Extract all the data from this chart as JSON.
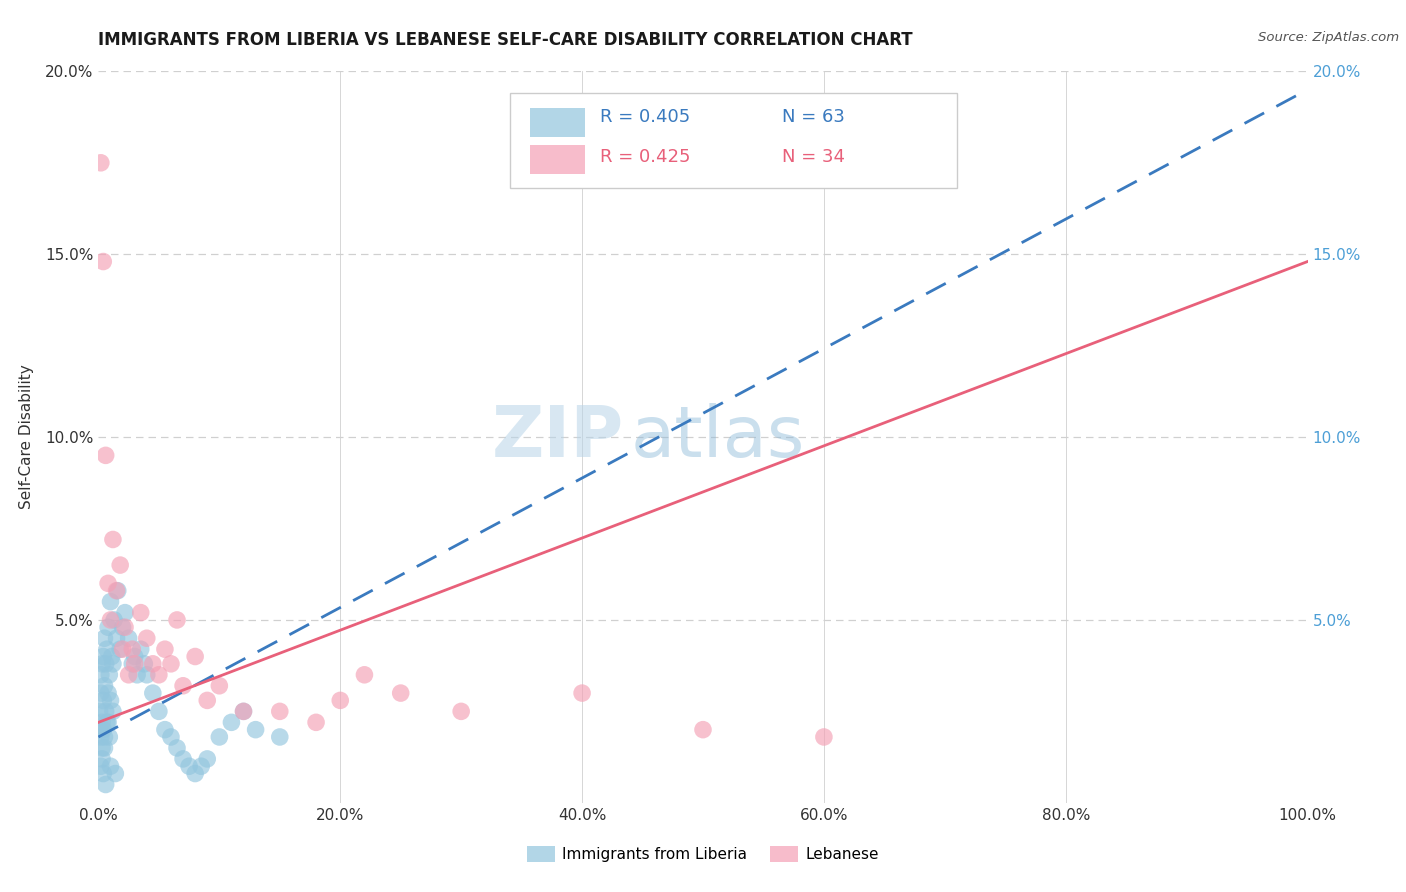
{
  "title": "IMMIGRANTS FROM LIBERIA VS LEBANESE SELF-CARE DISABILITY CORRELATION CHART",
  "source": "Source: ZipAtlas.com",
  "ylabel": "Self-Care Disability",
  "xlim": [
    0,
    1.0
  ],
  "ylim": [
    0,
    0.2
  ],
  "legend_r1": "R = 0.405",
  "legend_n1": "N = 63",
  "legend_r2": "R = 0.425",
  "legend_n2": "N = 34",
  "color_blue": "#92c5de",
  "color_pink": "#f4a0b5",
  "color_blue_line": "#3a7abf",
  "color_pink_line": "#e8607a",
  "watermark_zip": "ZIP",
  "watermark_atlas": "atlas",
  "background_color": "#ffffff",
  "grid_color": "#d0d0d0",
  "title_color": "#1a1a1a",
  "source_color": "#555555",
  "right_axis_color": "#4d9fd6",
  "left_axis_label_color": "#333333",
  "legend_box_color": "#e8e8e8",
  "blue_scatter_x": [
    0.001,
    0.001,
    0.002,
    0.002,
    0.002,
    0.003,
    0.003,
    0.003,
    0.004,
    0.004,
    0.004,
    0.005,
    0.005,
    0.005,
    0.006,
    0.006,
    0.007,
    0.007,
    0.008,
    0.008,
    0.009,
    0.01,
    0.01,
    0.011,
    0.012,
    0.013,
    0.015,
    0.016,
    0.018,
    0.02,
    0.022,
    0.025,
    0.028,
    0.03,
    0.032,
    0.035,
    0.038,
    0.04,
    0.045,
    0.05,
    0.055,
    0.06,
    0.065,
    0.07,
    0.075,
    0.08,
    0.085,
    0.09,
    0.1,
    0.11,
    0.12,
    0.13,
    0.15,
    0.002,
    0.003,
    0.004,
    0.005,
    0.006,
    0.008,
    0.009,
    0.01,
    0.012,
    0.014
  ],
  "blue_scatter_y": [
    0.02,
    0.025,
    0.018,
    0.03,
    0.035,
    0.015,
    0.022,
    0.038,
    0.02,
    0.028,
    0.04,
    0.018,
    0.032,
    0.045,
    0.025,
    0.038,
    0.022,
    0.042,
    0.03,
    0.048,
    0.035,
    0.028,
    0.055,
    0.04,
    0.038,
    0.05,
    0.045,
    0.058,
    0.042,
    0.048,
    0.052,
    0.045,
    0.038,
    0.04,
    0.035,
    0.042,
    0.038,
    0.035,
    0.03,
    0.025,
    0.02,
    0.018,
    0.015,
    0.012,
    0.01,
    0.008,
    0.01,
    0.012,
    0.018,
    0.022,
    0.025,
    0.02,
    0.018,
    0.01,
    0.012,
    0.008,
    0.015,
    0.005,
    0.022,
    0.018,
    0.01,
    0.025,
    0.008
  ],
  "pink_scatter_x": [
    0.002,
    0.004,
    0.006,
    0.008,
    0.01,
    0.012,
    0.015,
    0.018,
    0.02,
    0.022,
    0.025,
    0.028,
    0.03,
    0.035,
    0.04,
    0.045,
    0.05,
    0.055,
    0.06,
    0.065,
    0.07,
    0.08,
    0.09,
    0.1,
    0.12,
    0.15,
    0.18,
    0.2,
    0.22,
    0.25,
    0.3,
    0.4,
    0.5,
    0.6
  ],
  "pink_scatter_y": [
    0.175,
    0.148,
    0.095,
    0.06,
    0.05,
    0.072,
    0.058,
    0.065,
    0.042,
    0.048,
    0.035,
    0.042,
    0.038,
    0.052,
    0.045,
    0.038,
    0.035,
    0.042,
    0.038,
    0.05,
    0.032,
    0.04,
    0.028,
    0.032,
    0.025,
    0.025,
    0.022,
    0.028,
    0.035,
    0.03,
    0.025,
    0.03,
    0.02,
    0.018
  ],
  "blue_line_x0": 0.0,
  "blue_line_y0": 0.018,
  "blue_line_x1": 1.0,
  "blue_line_y1": 0.195,
  "pink_line_x0": 0.0,
  "pink_line_y0": 0.022,
  "pink_line_x1": 1.0,
  "pink_line_y1": 0.148
}
